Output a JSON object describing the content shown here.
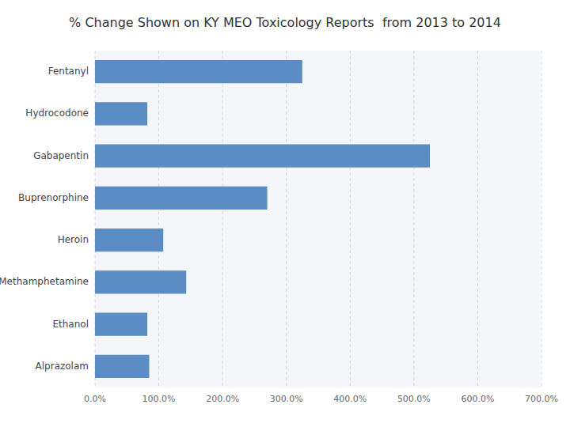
{
  "chart_data": {
    "type": "bar",
    "orientation": "horizontal",
    "title": "% Change Shown on KY MEO Toxicology Reports  from 2013 to 2014",
    "categories": [
      "Fentanyl",
      "Hydrocodone",
      "Gabapentin",
      "Buprenorphine",
      "Heroin",
      "Methamphetamine",
      "Ethanol",
      "Alprazolam"
    ],
    "values": [
      325,
      82,
      525,
      270,
      107,
      143,
      82,
      85
    ],
    "color": "#5b8dc4",
    "xlim": [
      0,
      700
    ],
    "xticks": [
      {
        "value": 0,
        "label": "0.0%"
      },
      {
        "value": 100,
        "label": "100.0%"
      },
      {
        "value": 200,
        "label": "200.0%"
      },
      {
        "value": 300,
        "label": "300.0%"
      },
      {
        "value": 400,
        "label": "400.0%"
      },
      {
        "value": 500,
        "label": "500.0%"
      },
      {
        "value": 600,
        "label": "600.0%"
      },
      {
        "value": 700,
        "label": "700.0%"
      }
    ],
    "grid": true
  }
}
